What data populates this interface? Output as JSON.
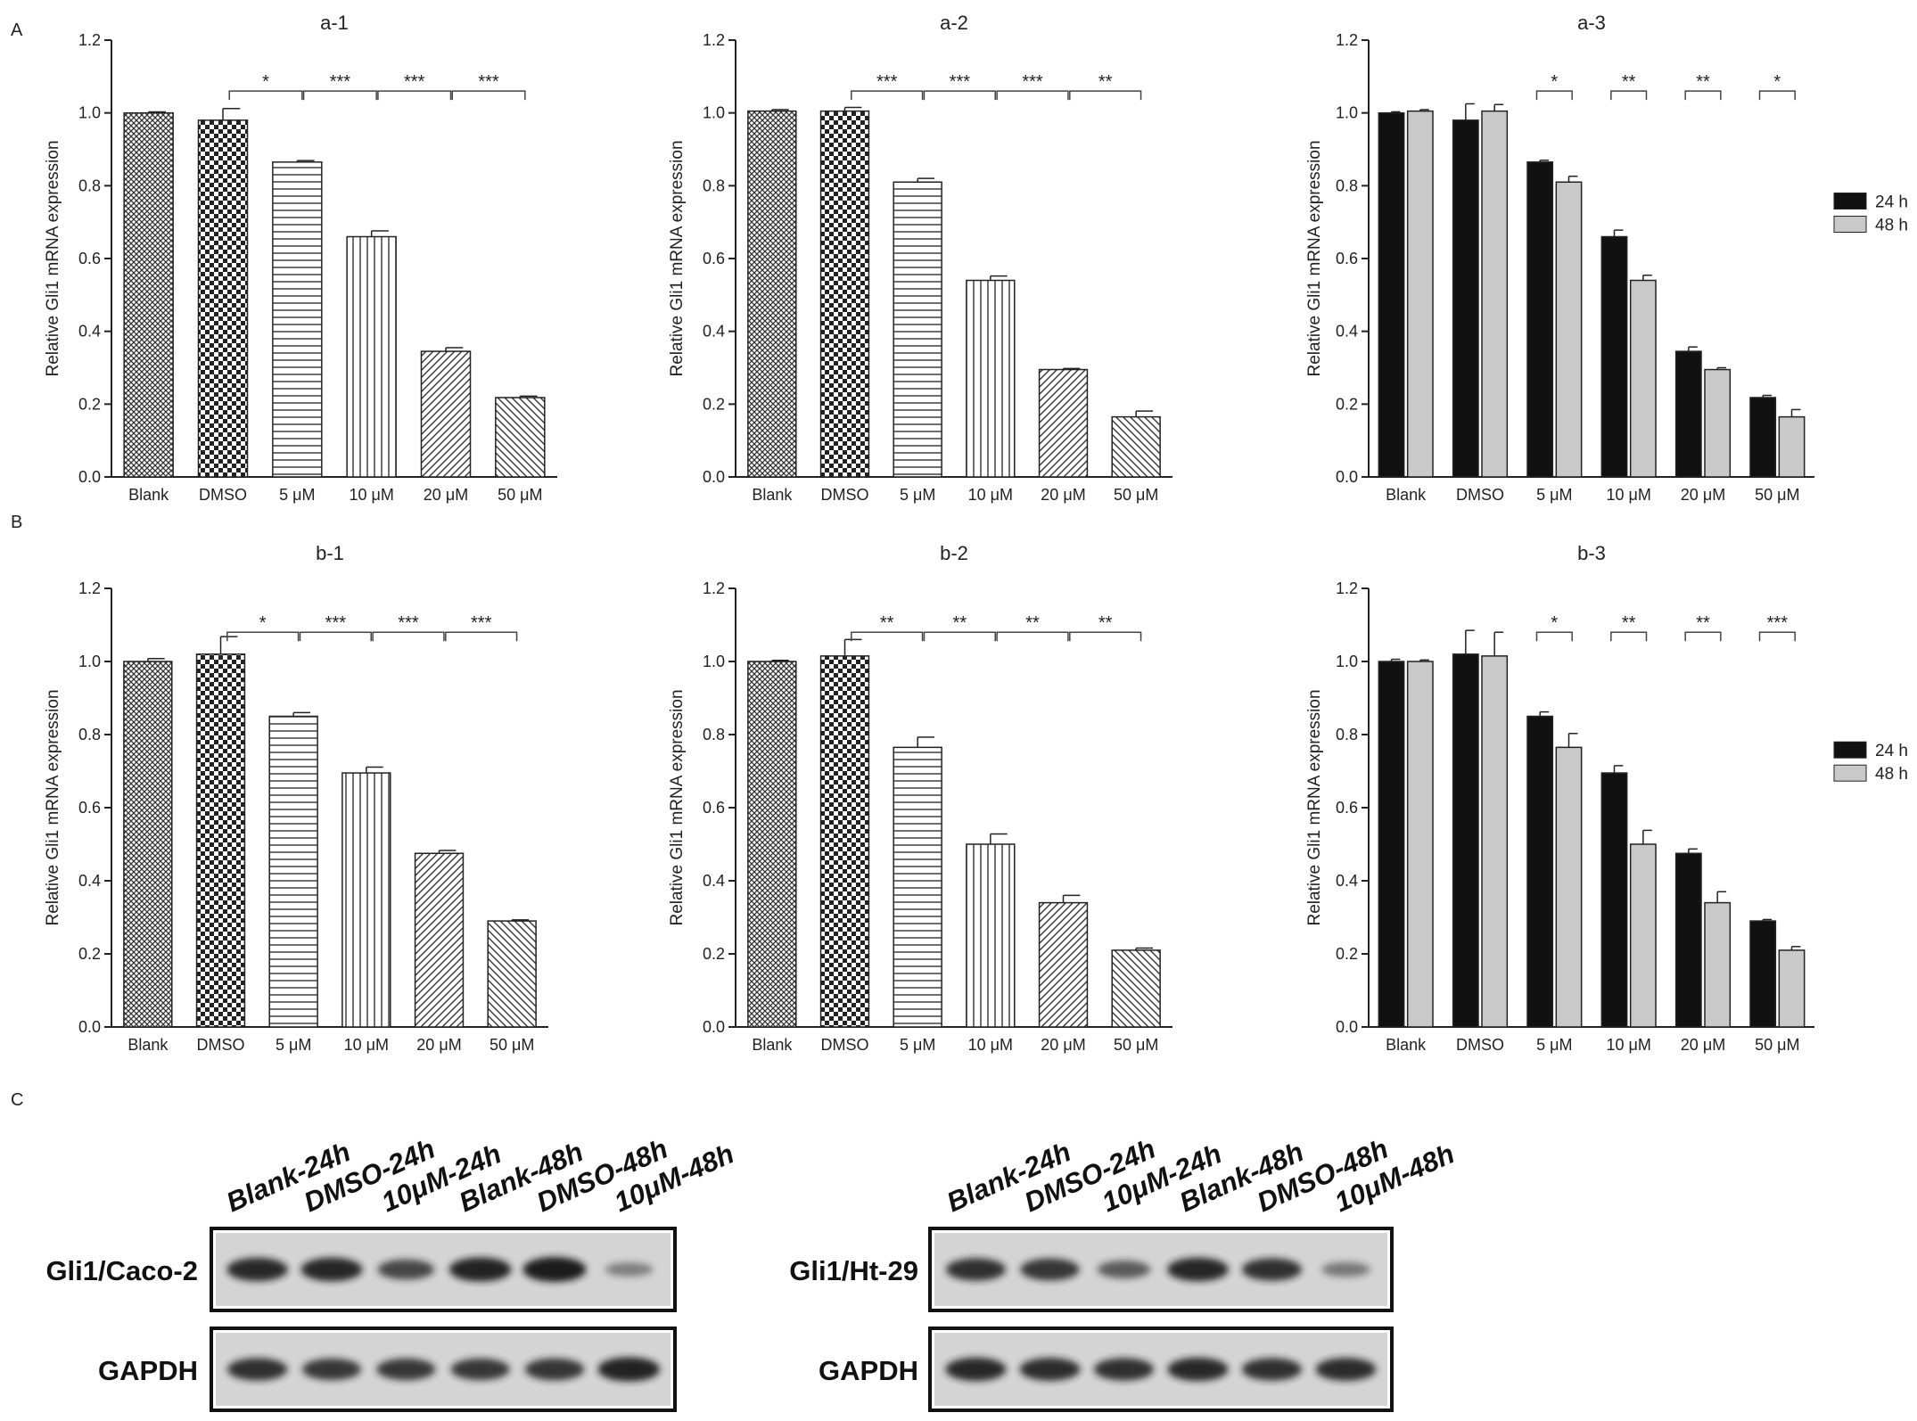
{
  "panels": {
    "A": "A",
    "B": "B",
    "C": "C"
  },
  "colors": {
    "black_bar": "#111111",
    "grey_bar": "#c9c9c9",
    "band": "#1a1a1a",
    "blot_bg": "#d4d4d4"
  },
  "chart_data": [
    {
      "id": "a1",
      "type": "bar",
      "title": "a-1",
      "ylabel": "Relative Gli1 mRNA expression",
      "ylim": [
        0,
        1.2
      ],
      "yticks": [
        "0.0",
        "0.2",
        "0.4",
        "0.6",
        "0.8",
        "1.0",
        "1.2"
      ],
      "categories": [
        "Blank",
        "DMSO",
        "5 μM",
        "10 μM",
        "20 μM",
        "50 μM"
      ],
      "patterns": [
        "fine",
        "check",
        "hstripe",
        "vstripe",
        "diag",
        "diag2"
      ],
      "series": [
        {
          "values": [
            1.0,
            0.98,
            0.865,
            0.66,
            0.345,
            0.218
          ],
          "errors": [
            0.003,
            0.032,
            0.004,
            0.016,
            0.01,
            0.004
          ]
        }
      ],
      "significance": [
        {
          "from": 1,
          "to": 2,
          "label": "*"
        },
        {
          "from": 2,
          "to": 3,
          "label": "***"
        },
        {
          "from": 3,
          "to": 4,
          "label": "***"
        },
        {
          "from": 4,
          "to": 5,
          "label": "***"
        }
      ],
      "sig_y": 1.06
    },
    {
      "id": "a2",
      "type": "bar",
      "title": "a-2",
      "ylabel": "Relative Gli1 mRNA expression",
      "ylim": [
        0,
        1.2
      ],
      "yticks": [
        "0.0",
        "0.2",
        "0.4",
        "0.6",
        "0.8",
        "1.0",
        "1.2"
      ],
      "categories": [
        "Blank",
        "DMSO",
        "5 μM",
        "10 μM",
        "20 μM",
        "50 μM"
      ],
      "patterns": [
        "fine",
        "check",
        "hstripe",
        "vstripe",
        "diag",
        "diag2"
      ],
      "series": [
        {
          "values": [
            1.005,
            1.005,
            0.81,
            0.54,
            0.295,
            0.165
          ],
          "errors": [
            0.004,
            0.01,
            0.01,
            0.012,
            0.003,
            0.016
          ]
        }
      ],
      "significance": [
        {
          "from": 1,
          "to": 2,
          "label": "***"
        },
        {
          "from": 2,
          "to": 3,
          "label": "***"
        },
        {
          "from": 3,
          "to": 4,
          "label": "***"
        },
        {
          "from": 4,
          "to": 5,
          "label": "**"
        }
      ],
      "sig_y": 1.06
    },
    {
      "id": "a3",
      "type": "bar",
      "title": "a-3",
      "ylabel": "Relative Gli1 mRNA expression",
      "ylim": [
        0,
        1.2
      ],
      "yticks": [
        "0.0",
        "0.2",
        "0.4",
        "0.6",
        "0.8",
        "1.0",
        "1.2"
      ],
      "categories": [
        "Blank",
        "DMSO",
        "5 μM",
        "10 μM",
        "20 μM",
        "50 μM"
      ],
      "series": [
        {
          "name": "24 h",
          "values": [
            1.0,
            0.98,
            0.865,
            0.66,
            0.345,
            0.218
          ],
          "errors": [
            0.003,
            0.045,
            0.005,
            0.018,
            0.012,
            0.006
          ]
        },
        {
          "name": "48 h",
          "values": [
            1.005,
            1.005,
            0.81,
            0.54,
            0.295,
            0.165
          ],
          "errors": [
            0.004,
            0.018,
            0.016,
            0.014,
            0.005,
            0.02
          ]
        }
      ],
      "significance": [
        {
          "from": 2,
          "to": 2,
          "label": "*"
        },
        {
          "from": 3,
          "to": 3,
          "label": "**"
        },
        {
          "from": 4,
          "to": 4,
          "label": "**"
        },
        {
          "from": 5,
          "to": 5,
          "label": "*"
        }
      ],
      "sig_y": 1.06,
      "legend": "right"
    },
    {
      "id": "b1",
      "type": "bar",
      "title": "b-1",
      "ylabel": "Relative Gli1 mRNA expression",
      "ylim": [
        0,
        1.2
      ],
      "yticks": [
        "0.0",
        "0.2",
        "0.4",
        "0.6",
        "0.8",
        "1.0",
        "1.2"
      ],
      "categories": [
        "Blank",
        "DMSO",
        "5 μM",
        "10 μM",
        "20 μM",
        "50 μM"
      ],
      "patterns": [
        "fine",
        "check",
        "hstripe",
        "vstripe",
        "diag",
        "diag2"
      ],
      "series": [
        {
          "values": [
            1.0,
            1.02,
            0.85,
            0.695,
            0.475,
            0.29
          ],
          "errors": [
            0.008,
            0.048,
            0.01,
            0.016,
            0.008,
            0.003
          ]
        }
      ],
      "significance": [
        {
          "from": 1,
          "to": 2,
          "label": "*"
        },
        {
          "from": 2,
          "to": 3,
          "label": "***"
        },
        {
          "from": 3,
          "to": 4,
          "label": "***"
        },
        {
          "from": 4,
          "to": 5,
          "label": "***"
        }
      ],
      "sig_y": 1.08
    },
    {
      "id": "b2",
      "type": "bar",
      "title": "b-2",
      "ylabel": "Relative Gli1 mRNA expression",
      "ylim": [
        0,
        1.2
      ],
      "yticks": [
        "0.0",
        "0.2",
        "0.4",
        "0.6",
        "0.8",
        "1.0",
        "1.2"
      ],
      "categories": [
        "Blank",
        "DMSO",
        "5 μM",
        "10 μM",
        "20 μM",
        "50 μM"
      ],
      "patterns": [
        "fine",
        "check",
        "hstripe",
        "vstripe",
        "diag",
        "diag2"
      ],
      "series": [
        {
          "values": [
            1.0,
            1.015,
            0.765,
            0.5,
            0.34,
            0.21
          ],
          "errors": [
            0.003,
            0.045,
            0.028,
            0.028,
            0.02,
            0.006
          ]
        }
      ],
      "significance": [
        {
          "from": 1,
          "to": 2,
          "label": "**"
        },
        {
          "from": 2,
          "to": 3,
          "label": "**"
        },
        {
          "from": 3,
          "to": 4,
          "label": "**"
        },
        {
          "from": 4,
          "to": 5,
          "label": "**"
        }
      ],
      "sig_y": 1.08
    },
    {
      "id": "b3",
      "type": "bar",
      "title": "b-3",
      "ylabel": "Relative Gli1 mRNA expression",
      "ylim": [
        0,
        1.2
      ],
      "yticks": [
        "0.0",
        "0.2",
        "0.4",
        "0.6",
        "0.8",
        "1.0",
        "1.2"
      ],
      "categories": [
        "Blank",
        "DMSO",
        "5 μM",
        "10 μM",
        "20 μM",
        "50 μM"
      ],
      "series": [
        {
          "name": "24 h",
          "values": [
            1.0,
            1.02,
            0.85,
            0.695,
            0.475,
            0.29
          ],
          "errors": [
            0.006,
            0.065,
            0.012,
            0.02,
            0.012,
            0.004
          ]
        },
        {
          "name": "48 h",
          "values": [
            1.0,
            1.015,
            0.765,
            0.5,
            0.34,
            0.21
          ],
          "errors": [
            0.004,
            0.065,
            0.038,
            0.038,
            0.03,
            0.01
          ]
        }
      ],
      "significance": [
        {
          "from": 2,
          "to": 2,
          "label": "*"
        },
        {
          "from": 3,
          "to": 3,
          "label": "**"
        },
        {
          "from": 4,
          "to": 4,
          "label": "**"
        },
        {
          "from": 5,
          "to": 5,
          "label": "***"
        }
      ],
      "sig_y": 1.08,
      "legend": "right"
    }
  ],
  "blots": [
    {
      "id": "caco2",
      "lanes": [
        "Blank-24h",
        "DMSO-24h",
        "10μM-24h",
        "Blank-48h",
        "DMSO-48h",
        "10μM-48h"
      ],
      "rows": [
        {
          "label": "Gli1/Caco-2",
          "intensity": [
            0.9,
            0.92,
            0.7,
            0.95,
            1.0,
            0.3
          ]
        },
        {
          "label": "GAPDH",
          "intensity": [
            0.85,
            0.8,
            0.8,
            0.8,
            0.82,
            0.95
          ]
        }
      ]
    },
    {
      "id": "ht29",
      "lanes": [
        "Blank-24h",
        "DMSO-24h",
        "10μM-24h",
        "Blank-48h",
        "DMSO-48h",
        "10μM-48h"
      ],
      "rows": [
        {
          "label": "Gli1/Ht-29",
          "intensity": [
            0.85,
            0.82,
            0.55,
            0.92,
            0.85,
            0.35
          ]
        },
        {
          "label": "GAPDH",
          "intensity": [
            0.9,
            0.88,
            0.85,
            0.9,
            0.85,
            0.88
          ]
        }
      ]
    }
  ]
}
